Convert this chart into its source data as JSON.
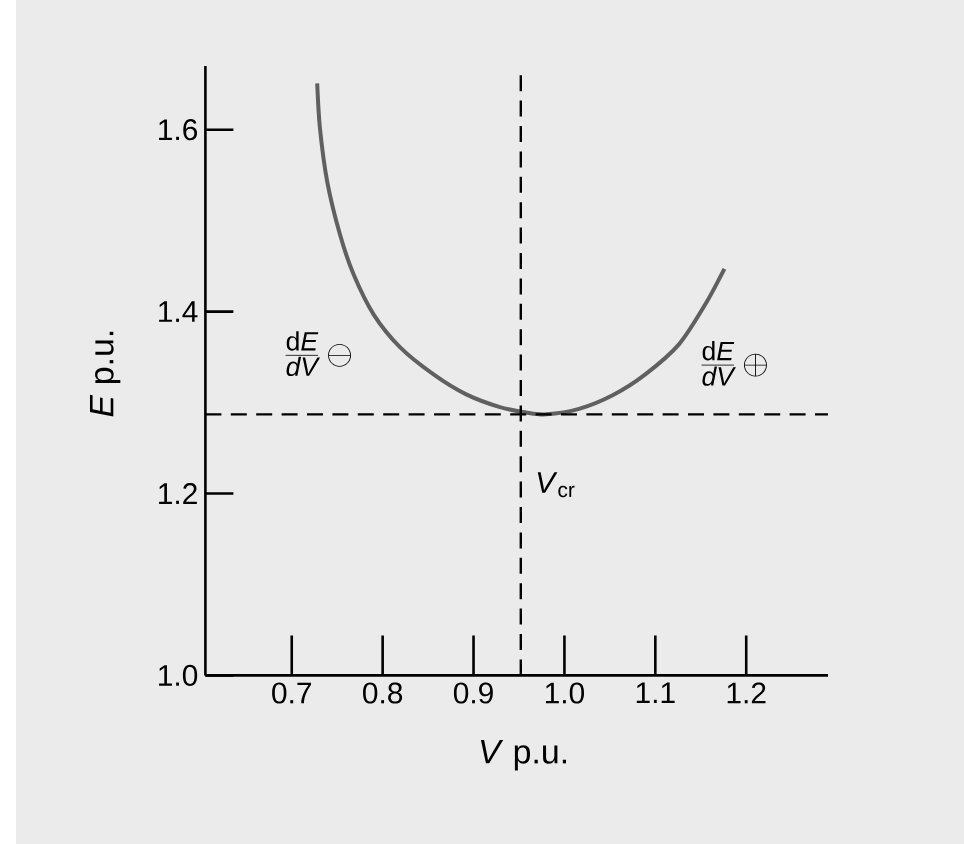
{
  "chart_data": {
    "type": "line",
    "xlabel": "*V* p.u.",
    "ylabel": "*E* p.u.",
    "x": [
      0.728,
      0.731,
      0.739,
      0.753,
      0.768,
      0.79,
      0.819,
      0.856,
      0.892,
      0.929,
      0.958,
      0.98,
      1.016,
      1.053,
      1.089,
      1.126,
      1.155,
      1.176
    ],
    "series": [
      {
        "color": "#606060",
        "values": [
          1.651,
          1.602,
          1.543,
          1.485,
          1.441,
          1.397,
          1.361,
          1.331,
          1.309,
          1.295,
          1.289,
          1.287,
          1.293,
          1.308,
          1.331,
          1.364,
          1.408,
          1.447
        ]
      }
    ],
    "xlim": [
      0.605,
      1.29
    ],
    "ylim": [
      1.0,
      1.67
    ],
    "xticks": [
      0.7,
      0.8,
      0.9,
      {
        "value": 1.0,
        "label": "1.0"
      },
      1.1,
      1.2
    ],
    "yticks": [
      {
        "value": 1.0,
        "label": "1.0"
      },
      1.2,
      1.4,
      1.6
    ],
    "ref_lines": [
      {
        "axis": "y",
        "value": 1.287,
        "line_style": "dashed",
        "color": "#000000"
      },
      {
        "axis": "x",
        "value": 0.952,
        "label": "*V*$_{cr}$",
        "line_style": "dashed",
        "color": "#000000"
      }
    ],
    "annotations": [
      "\\frac{\\mathrm{d}\\mathit{E}}{\\mathit{dV}}\\,\\ominus",
      "\\frac{\\mathrm{d}\\mathit{E}}{\\mathit{dV}}\\,\\oplus"
    ],
    "marker": "none",
    "line_style": "solid"
  }
}
